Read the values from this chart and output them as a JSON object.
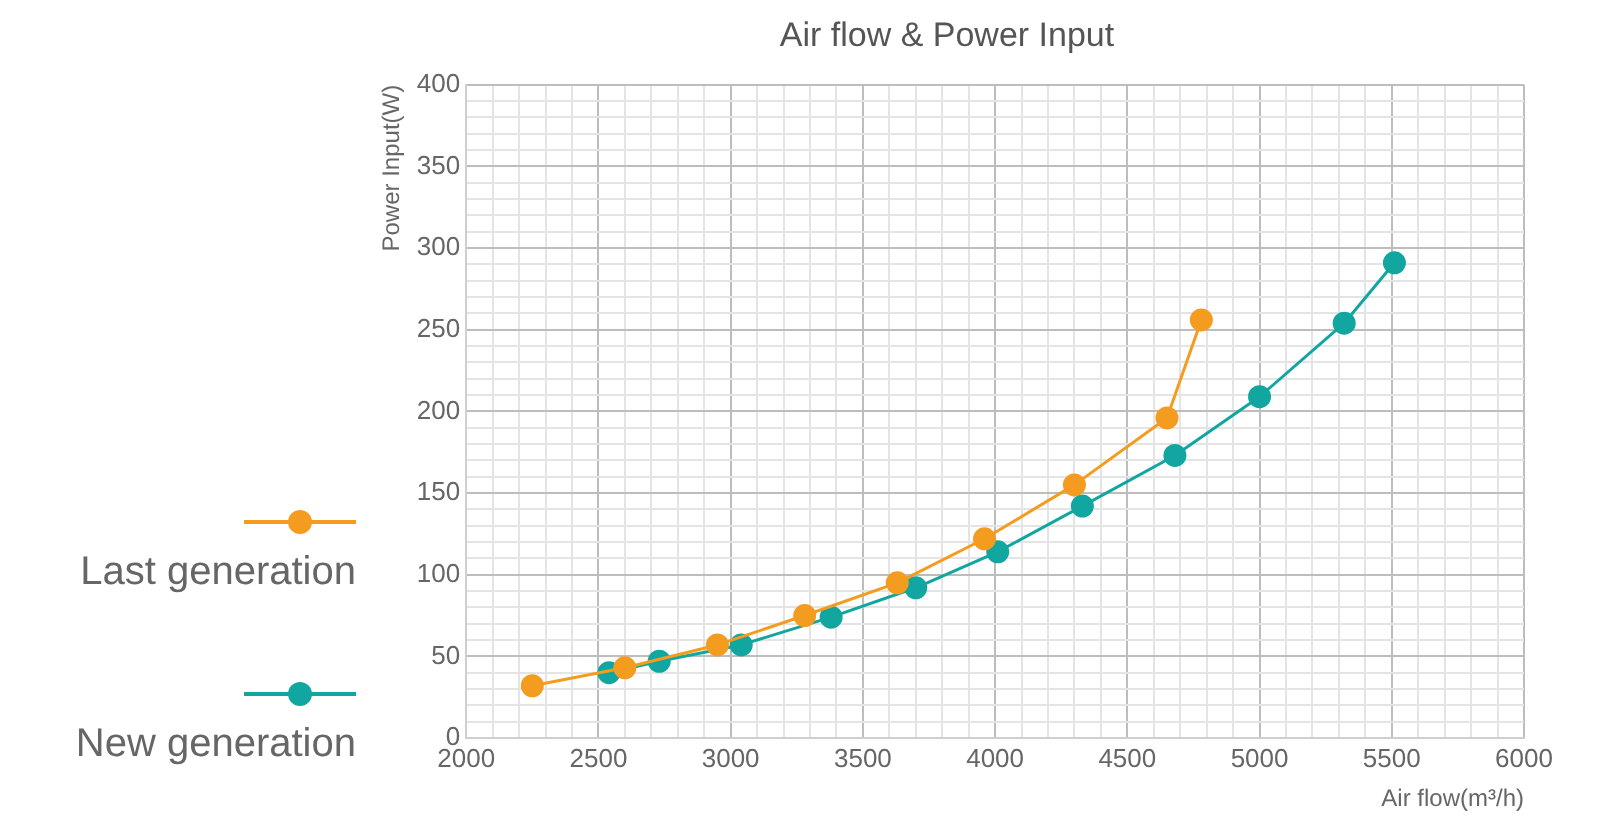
{
  "chart_data": {
    "type": "line",
    "title": "Air flow & Power Input",
    "xlabel": "Air flow(m³/h)",
    "ylabel": "Power Input(W)",
    "legend": "left",
    "marker": "circle",
    "line_style": "solid",
    "grid": true,
    "xlim": [
      2000,
      6000
    ],
    "ylim": [
      0,
      400
    ],
    "xticks": [
      2000,
      {
        "value": 2100,
        "label": null
      },
      {
        "value": 2200,
        "label": null
      },
      {
        "value": 2300,
        "label": null
      },
      {
        "value": 2400,
        "label": null
      },
      2500,
      {
        "value": 2600,
        "label": null
      },
      {
        "value": 2700,
        "label": null
      },
      {
        "value": 2800,
        "label": null
      },
      {
        "value": 2900,
        "label": null
      },
      3000,
      {
        "value": 3100,
        "label": null
      },
      {
        "value": 3200,
        "label": null
      },
      {
        "value": 3300,
        "label": null
      },
      {
        "value": 3400,
        "label": null
      },
      3500,
      {
        "value": 3600,
        "label": null
      },
      {
        "value": 3700,
        "label": null
      },
      {
        "value": 3800,
        "label": null
      },
      {
        "value": 3900,
        "label": null
      },
      4000,
      {
        "value": 4100,
        "label": null
      },
      {
        "value": 4200,
        "label": null
      },
      {
        "value": 4300,
        "label": null
      },
      {
        "value": 4400,
        "label": null
      },
      4500,
      {
        "value": 4600,
        "label": null
      },
      {
        "value": 4700,
        "label": null
      },
      {
        "value": 4800,
        "label": null
      },
      {
        "value": 4900,
        "label": null
      },
      5000,
      {
        "value": 5100,
        "label": null
      },
      {
        "value": 5200,
        "label": null
      },
      {
        "value": 5300,
        "label": null
      },
      {
        "value": 5400,
        "label": null
      },
      5500,
      {
        "value": 5600,
        "label": null
      },
      {
        "value": 5700,
        "label": null
      },
      {
        "value": 5800,
        "label": null
      },
      {
        "value": 5900,
        "label": null
      },
      6000
    ],
    "yticks": [
      0,
      {
        "value": 10,
        "label": null
      },
      {
        "value": 20,
        "label": null
      },
      {
        "value": 30,
        "label": null
      },
      {
        "value": 40,
        "label": null
      },
      50,
      {
        "value": 60,
        "label": null
      },
      {
        "value": 70,
        "label": null
      },
      {
        "value": 80,
        "label": null
      },
      {
        "value": 90,
        "label": null
      },
      100,
      {
        "value": 110,
        "label": null
      },
      {
        "value": 120,
        "label": null
      },
      {
        "value": 130,
        "label": null
      },
      {
        "value": 140,
        "label": null
      },
      150,
      {
        "value": 160,
        "label": null
      },
      {
        "value": 170,
        "label": null
      },
      {
        "value": 180,
        "label": null
      },
      {
        "value": 190,
        "label": null
      },
      200,
      {
        "value": 210,
        "label": null
      },
      {
        "value": 220,
        "label": null
      },
      {
        "value": 230,
        "label": null
      },
      {
        "value": 240,
        "label": null
      },
      250,
      {
        "value": 260,
        "label": null
      },
      {
        "value": 270,
        "label": null
      },
      {
        "value": 280,
        "label": null
      },
      {
        "value": 290,
        "label": null
      },
      300,
      {
        "value": 310,
        "label": null
      },
      {
        "value": 320,
        "label": null
      },
      {
        "value": 330,
        "label": null
      },
      {
        "value": 340,
        "label": null
      },
      350,
      {
        "value": 360,
        "label": null
      },
      {
        "value": 370,
        "label": null
      },
      {
        "value": 380,
        "label": null
      },
      {
        "value": 390,
        "label": null
      },
      400
    ],
    "series": [
      {
        "name": "Last generation",
        "color": "#f39c1f",
        "x": [
          2250,
          2600,
          2950,
          3280,
          3630,
          3960,
          4300,
          4650,
          4780
        ],
        "values": [
          32,
          43,
          57,
          75,
          95,
          122,
          155,
          196,
          256
        ]
      },
      {
        "name": "New generation",
        "color": "#12a6a0",
        "x": [
          2540,
          2730,
          3040,
          3380,
          3700,
          4010,
          4330,
          4680,
          5000,
          5320,
          5510
        ],
        "values": [
          40,
          47,
          57,
          74,
          92,
          114,
          142,
          173,
          209,
          254,
          291
        ]
      }
    ]
  }
}
